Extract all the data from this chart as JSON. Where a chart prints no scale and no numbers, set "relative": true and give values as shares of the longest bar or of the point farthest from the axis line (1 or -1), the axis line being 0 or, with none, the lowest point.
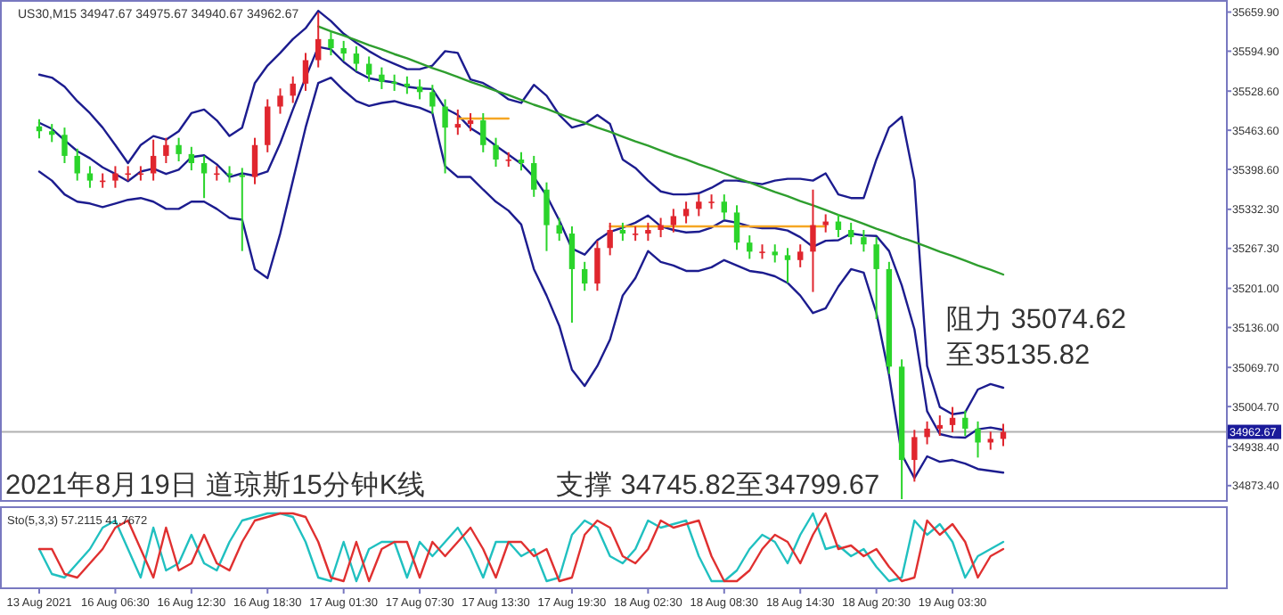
{
  "chart_data": [
    {
      "type": "candlestick",
      "title": "2021年8月19日 道琼斯15分钟K线",
      "categories": [
        null,
        null,
        null,
        null,
        null,
        null,
        null,
        null,
        null,
        null,
        null,
        null,
        null,
        null,
        null,
        null,
        null,
        null,
        null,
        null,
        null,
        null,
        null,
        null,
        null,
        null,
        null,
        null,
        null,
        null,
        null,
        null,
        null,
        null,
        null,
        null,
        null,
        null,
        null,
        null,
        null,
        null,
        null,
        null,
        null,
        null,
        null,
        null,
        null,
        null,
        null,
        null,
        null,
        null,
        null,
        null,
        null,
        null,
        null,
        null,
        null,
        null,
        null,
        null,
        null,
        null,
        null,
        null,
        null,
        null,
        null,
        null,
        null,
        null,
        null,
        null,
        null
      ],
      "ohlc": [
        [
          35470,
          35482,
          35450,
          35462
        ],
        [
          35462,
          35474,
          35444,
          35456
        ],
        [
          35456,
          35468,
          35409,
          35421
        ],
        [
          35421,
          35433,
          35380,
          35392
        ],
        [
          35392,
          35404,
          35368,
          35380
        ],
        [
          35380,
          35392,
          35368,
          35380
        ],
        [
          35380,
          35404,
          35368,
          35392
        ],
        [
          35392,
          35404,
          35380,
          35392
        ],
        [
          35392,
          35404,
          35380,
          35392
        ],
        [
          35392,
          35448,
          35380,
          35421
        ],
        [
          35421,
          35451,
          35409,
          35439
        ],
        [
          35439,
          35451,
          35412,
          35424
        ],
        [
          35424,
          35436,
          35397,
          35409
        ],
        [
          35409,
          35421,
          35351,
          35392
        ],
        [
          35392,
          35404,
          35380,
          35392
        ],
        [
          35392,
          35404,
          35377,
          35389
        ],
        [
          35389,
          35401,
          35263,
          35386
        ],
        [
          35386,
          35451,
          35374,
          35439
        ],
        [
          35439,
          35515,
          35427,
          35503
        ],
        [
          35503,
          35533,
          35491,
          35521
        ],
        [
          35521,
          35553,
          35509,
          35541
        ],
        [
          35541,
          35592,
          35529,
          35580
        ],
        [
          35580,
          35659,
          35568,
          35615
        ],
        [
          35615,
          35627,
          35588,
          35600
        ],
        [
          35600,
          35612,
          35579,
          35591
        ],
        [
          35591,
          35603,
          35562,
          35574
        ],
        [
          35574,
          35586,
          35544,
          35556
        ],
        [
          35556,
          35568,
          35532,
          35544
        ],
        [
          35544,
          35556,
          35529,
          35541
        ],
        [
          35541,
          35553,
          35524,
          35536
        ],
        [
          35536,
          35548,
          35515,
          35527
        ],
        [
          35527,
          35539,
          35491,
          35503
        ],
        [
          35503,
          35515,
          35392,
          35468
        ],
        [
          35468,
          35498,
          35456,
          35474
        ],
        [
          35474,
          35492,
          35462,
          35480
        ],
        [
          35480,
          35492,
          35427,
          35439
        ],
        [
          35439,
          35451,
          35403,
          35415
        ],
        [
          35415,
          35427,
          35403,
          35415
        ],
        [
          35415,
          35427,
          35397,
          35409
        ],
        [
          35409,
          35421,
          35353,
          35365
        ],
        [
          35365,
          35377,
          35263,
          35306
        ],
        [
          35306,
          35318,
          35280,
          35292
        ],
        [
          35292,
          35304,
          35144,
          35233
        ],
        [
          35233,
          35245,
          35197,
          35209
        ],
        [
          35209,
          35280,
          35197,
          35268
        ],
        [
          35268,
          35310,
          35256,
          35298
        ],
        [
          35298,
          35310,
          35280,
          35292
        ],
        [
          35292,
          35304,
          35280,
          35292
        ],
        [
          35292,
          35310,
          35280,
          35298
        ],
        [
          35298,
          35318,
          35286,
          35306
        ],
        [
          35306,
          35333,
          35294,
          35321
        ],
        [
          35321,
          35345,
          35309,
          35333
        ],
        [
          35333,
          35357,
          35321,
          35345
        ],
        [
          35345,
          35357,
          35333,
          35345
        ],
        [
          35345,
          35357,
          35315,
          35327
        ],
        [
          35327,
          35339,
          35265,
          35277
        ],
        [
          35277,
          35289,
          35250,
          35262
        ],
        [
          35262,
          35274,
          35250,
          35262
        ],
        [
          35262,
          35274,
          35244,
          35256
        ],
        [
          35256,
          35268,
          35210,
          35248
        ],
        [
          35248,
          35274,
          35236,
          35262
        ],
        [
          35262,
          35365,
          35195,
          35306
        ],
        [
          35306,
          35324,
          35294,
          35312
        ],
        [
          35312,
          35324,
          35286,
          35298
        ],
        [
          35298,
          35310,
          35274,
          35286
        ],
        [
          35286,
          35298,
          35262,
          35274
        ],
        [
          35274,
          35286,
          35150,
          35233
        ],
        [
          35233,
          35245,
          35059,
          35071
        ],
        [
          35071,
          35083,
          34851,
          34916
        ],
        [
          34916,
          34966,
          34880,
          34954
        ],
        [
          34954,
          34980,
          34942,
          34968
        ],
        [
          34968,
          34990,
          34956,
          34974
        ],
        [
          34974,
          35004,
          34962,
          34986
        ],
        [
          34986,
          34998,
          34956,
          34968
        ],
        [
          34968,
          34980,
          34920,
          34945
        ],
        [
          34945,
          34963,
          34933,
          34951
        ],
        [
          34951,
          34976,
          34939,
          34962.67
        ]
      ],
      "colors": [
        "#2bd42b",
        "#2bd42b",
        "#2bd42b",
        "#2bd42b",
        "#2bd42b",
        "#e0262e",
        "#e0262e",
        "#e0262e",
        "#e0262e",
        "#e0262e",
        "#e0262e",
        "#2bd42b",
        "#2bd42b",
        "#2bd42b",
        "#e0262e",
        "#2bd42b",
        "#2bd42b",
        "#e0262e",
        "#e0262e",
        "#e0262e",
        "#e0262e",
        "#e0262e",
        "#e0262e",
        "#2bd42b",
        "#2bd42b",
        "#2bd42b",
        "#2bd42b",
        "#2bd42b",
        "#2bd42b",
        "#2bd42b",
        "#2bd42b",
        "#2bd42b",
        "#2bd42b",
        "#e0262e",
        "#e0262e",
        "#2bd42b",
        "#2bd42b",
        "#e0262e",
        "#2bd42b",
        "#2bd42b",
        "#2bd42b",
        "#2bd42b",
        "#2bd42b",
        "#2bd42b",
        "#e0262e",
        "#e0262e",
        "#2bd42b",
        "#e0262e",
        "#e0262e",
        "#e0262e",
        "#e0262e",
        "#e0262e",
        "#e0262e",
        "#e0262e",
        "#2bd42b",
        "#2bd42b",
        "#2bd42b",
        "#e0262e",
        "#2bd42b",
        "#2bd42b",
        "#e0262e",
        "#e0262e",
        "#e0262e",
        "#2bd42b",
        "#2bd42b",
        "#2bd42b",
        "#2bd42b",
        "#2bd42b",
        "#2bd42b",
        "#e0262e",
        "#e0262e",
        "#e0262e",
        "#e0262e",
        "#2bd42b",
        "#2bd42b",
        "#e0262e",
        "#e0262e"
      ],
      "series": [
        {
          "type": "line",
          "color": "#1c1c8f",
          "values": [
            35556,
            35551,
            35536,
            35512,
            35492,
            35468,
            35439,
            35409,
            35439,
            35454,
            35448,
            35462,
            35492,
            35498,
            35480,
            35454,
            35468,
            35542,
            35571,
            35592,
            35615,
            35633,
            35662,
            35645,
            35624,
            35609,
            35595,
            35583,
            35574,
            35565,
            35565,
            35571,
            35595,
            35592,
            35548,
            35542,
            35530,
            35515,
            35509,
            35539,
            35521,
            35489,
            35468,
            35474,
            35489,
            35474,
            35415,
            35401,
            35380,
            35362,
            35357,
            35357,
            35359,
            35368,
            35380,
            35380,
            35377,
            35374,
            35380,
            35383,
            35383,
            35380,
            35392,
            35357,
            35351,
            35351,
            35415,
            35468,
            35486,
            35380,
            35072,
            35004,
            34992,
            34995,
            35033,
            35042,
            35036
          ]
        },
        {
          "type": "line",
          "color": "#1c1c8f",
          "values": [
            35476,
            35466,
            35447,
            35429,
            35417,
            35402,
            35391,
            35379,
            35395,
            35400,
            35391,
            35398,
            35419,
            35422,
            35407,
            35386,
            35392,
            35388,
            35395,
            35442,
            35498,
            35551,
            35602,
            35598,
            35577,
            35561,
            35550,
            35546,
            35543,
            35536,
            35533,
            35532,
            35500,
            35489,
            35467,
            35454,
            35438,
            35423,
            35408,
            35386,
            35355,
            35314,
            35267,
            35257,
            35281,
            35295,
            35302,
            35310,
            35322,
            35304,
            35298,
            35294,
            35295,
            35302,
            35314,
            35310,
            35304,
            35301,
            35301,
            35297,
            35286,
            35270,
            35280,
            35281,
            35292,
            35289,
            35288,
            35263,
            35206,
            35133,
            34997,
            34959,
            34954,
            34953,
            34967,
            34970,
            34966
          ]
        },
        {
          "type": "line",
          "color": "#1c1c8f",
          "values": [
            35395,
            35380,
            35357,
            35345,
            35342,
            35336,
            35342,
            35348,
            35351,
            35345,
            35333,
            35333,
            35345,
            35345,
            35333,
            35318,
            35315,
            35233,
            35218,
            35292,
            35380,
            35468,
            35542,
            35551,
            35530,
            35512,
            35504,
            35509,
            35512,
            35506,
            35501,
            35492,
            35404,
            35386,
            35386,
            35365,
            35345,
            35330,
            35307,
            35233,
            35189,
            35139,
            35066,
            35039,
            35072,
            35116,
            35189,
            35218,
            35263,
            35245,
            35239,
            35230,
            35230,
            35236,
            35248,
            35239,
            35230,
            35227,
            35221,
            35210,
            35189,
            35160,
            35168,
            35204,
            35233,
            35227,
            35160,
            35057,
            34925,
            34886,
            34922,
            34913,
            34916,
            34910,
            34901,
            34898,
            34895
          ]
        },
        {
          "type": "line",
          "color": "#2e9e2e",
          "values": [
            null,
            null,
            null,
            null,
            null,
            null,
            null,
            null,
            null,
            null,
            null,
            null,
            null,
            null,
            null,
            null,
            null,
            null,
            null,
            null,
            null,
            null,
            35636,
            35628,
            35621,
            35613,
            35605,
            35598,
            35590,
            35583,
            35575,
            35567,
            35560,
            35552,
            35544,
            35537,
            35529,
            35522,
            35514,
            35506,
            35499,
            35491,
            35483,
            35476,
            35468,
            35461,
            35453,
            35445,
            35438,
            35430,
            35422,
            35415,
            35407,
            35400,
            35392,
            35384,
            35377,
            35369,
            35361,
            35354,
            35346,
            35339,
            35331,
            35323,
            35316,
            35308,
            35300,
            35293,
            35285,
            35278,
            35270,
            35262,
            35255,
            35247,
            35239,
            35232,
            35224
          ]
        },
        {
          "type": "line",
          "color": "#f5a623",
          "values": [
            null,
            null,
            null,
            null,
            null,
            null,
            null,
            null,
            null,
            null,
            null,
            null,
            null,
            null,
            null,
            null,
            null,
            null,
            null,
            null,
            null,
            null,
            null,
            null,
            null,
            null,
            null,
            null,
            null,
            null,
            null,
            null,
            null,
            35483,
            35483,
            35483,
            35483,
            35483,
            null,
            null,
            null,
            null,
            null,
            null,
            null,
            null,
            null,
            null,
            null,
            null,
            null,
            null,
            null,
            null,
            null,
            null,
            null,
            null,
            null,
            null,
            null,
            null,
            null,
            null,
            null,
            null,
            null,
            null,
            null,
            null,
            null,
            null,
            null,
            null,
            null,
            null,
            null
          ]
        },
        {
          "type": "line",
          "color": "#f5a623",
          "values": [
            null,
            null,
            null,
            null,
            null,
            null,
            null,
            null,
            null,
            null,
            null,
            null,
            null,
            null,
            null,
            null,
            null,
            null,
            null,
            null,
            null,
            null,
            null,
            null,
            null,
            null,
            null,
            null,
            null,
            null,
            null,
            null,
            null,
            null,
            null,
            null,
            null,
            null,
            null,
            null,
            null,
            null,
            null,
            null,
            null,
            35304,
            35304,
            35304,
            35304,
            35304,
            35304,
            35304,
            35304,
            35304,
            35304,
            35304,
            35304,
            35304,
            35304,
            35304,
            35304,
            35304,
            35304,
            null,
            null,
            null,
            null,
            null,
            null,
            null,
            null,
            null,
            null,
            null,
            null,
            null,
            null
          ]
        }
      ],
      "ylim": [
        34848,
        35674
      ],
      "yticks": [
        {
          "value": 35659.9,
          "label": "35659.90"
        },
        {
          "value": 35594.9,
          "label": "35594.90"
        },
        {
          "value": 35528.6,
          "label": "35528.60"
        },
        {
          "value": 35463.6,
          "label": "35463.60"
        },
        {
          "value": 35398.6,
          "label": "35398.60"
        },
        {
          "value": 35332.3,
          "label": "35332.30"
        },
        {
          "value": 35267.3,
          "label": "35267.30"
        },
        {
          "value": 35201,
          "label": "35201.00"
        },
        {
          "value": 35136,
          "label": "35136.00"
        },
        {
          "value": 35069.7,
          "label": "35069.70"
        },
        {
          "value": 35004.7,
          "label": "35004.70"
        },
        {
          "value": 34938.4,
          "label": "34938.40"
        },
        {
          "value": 34873.4,
          "label": "34873.40"
        }
      ],
      "ref_lines": [
        {
          "axis": "y",
          "value": 34962.67,
          "label": "34962.67",
          "color": "#b0b0b0"
        }
      ],
      "annotations": [
        "US30,M15  34947.67 34975.67 34940.67 34962.67",
        "阻力 35074.62\n至35135.82",
        "支撑 34745.82至34799.67"
      ],
      "tick_labels": "y",
      "grid": false
    },
    {
      "type": "line",
      "relative": true,
      "categories": [
        "13 Aug 2021",
        null,
        null,
        null,
        null,
        null,
        "16 Aug 06:30",
        null,
        null,
        null,
        null,
        null,
        "16 Aug 12:30",
        null,
        null,
        null,
        null,
        null,
        "16 Aug 18:30",
        null,
        null,
        null,
        null,
        null,
        "17 Aug 01:30",
        null,
        null,
        null,
        null,
        null,
        "17 Aug 07:30",
        null,
        null,
        null,
        null,
        null,
        "17 Aug 13:30",
        null,
        null,
        null,
        null,
        null,
        "17 Aug 19:30",
        null,
        null,
        null,
        null,
        null,
        "18 Aug 02:30",
        null,
        null,
        null,
        null,
        null,
        "18 Aug 08:30",
        null,
        null,
        null,
        null,
        null,
        "18 Aug 14:30",
        null,
        null,
        null,
        null,
        null,
        "18 Aug 20:30",
        null,
        null,
        null,
        null,
        null,
        "19 Aug 03:30",
        null,
        null,
        null,
        null
      ],
      "series": [
        {
          "color": "#20c0c0",
          "values": [
            0.5,
            0.15,
            0.1,
            0.3,
            0.5,
            0.8,
            0.9,
            0.5,
            0.1,
            0.8,
            0.2,
            0.3,
            0.7,
            0.3,
            0.2,
            0.6,
            0.9,
            0.95,
            1,
            1,
            0.95,
            0.6,
            0.1,
            0.05,
            0.6,
            0.05,
            0.5,
            0.6,
            0.6,
            0.1,
            0.6,
            0.4,
            0.6,
            0.8,
            0.5,
            0.1,
            0.6,
            0.6,
            0.4,
            0.5,
            0.05,
            0.1,
            0.7,
            0.9,
            0.8,
            0.4,
            0.3,
            0.5,
            0.9,
            0.8,
            0.85,
            0.9,
            0.4,
            0.05,
            0.05,
            0.2,
            0.5,
            0.7,
            0.6,
            0.3,
            0.7,
            1,
            0.5,
            0.55,
            0.4,
            0.5,
            0.25,
            0.05,
            0.1,
            0.9,
            0.7,
            0.85,
            0.6,
            0.1,
            0.4,
            0.5,
            0.6
          ]
        },
        {
          "color": "#e03030",
          "values": [
            0.5,
            0.5,
            0.15,
            0.1,
            0.3,
            0.5,
            0.8,
            0.9,
            0.5,
            0.1,
            0.8,
            0.2,
            0.3,
            0.7,
            0.3,
            0.2,
            0.6,
            0.9,
            0.95,
            1,
            1,
            0.95,
            0.6,
            0.1,
            0.05,
            0.6,
            0.05,
            0.5,
            0.6,
            0.6,
            0.1,
            0.6,
            0.4,
            0.6,
            0.8,
            0.5,
            0.1,
            0.6,
            0.6,
            0.4,
            0.5,
            0.05,
            0.1,
            0.7,
            0.9,
            0.8,
            0.4,
            0.3,
            0.5,
            0.9,
            0.8,
            0.85,
            0.9,
            0.4,
            0.05,
            0.05,
            0.2,
            0.5,
            0.7,
            0.6,
            0.3,
            0.7,
            1,
            0.5,
            0.55,
            0.4,
            0.5,
            0.25,
            0.05,
            0.1,
            0.9,
            0.7,
            0.85,
            0.6,
            0.1,
            0.4,
            0.5
          ]
        }
      ],
      "annotations": [
        "Sto(5,3,3) 57.2115 41.7672"
      ],
      "tick_labels": "x",
      "grid": false
    }
  ]
}
